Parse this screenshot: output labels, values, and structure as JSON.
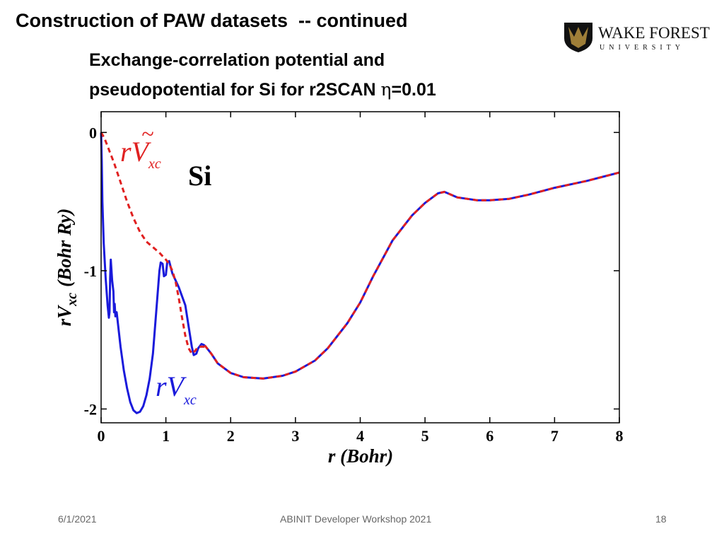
{
  "slide": {
    "title": "Construction of PAW datasets  -- continued",
    "subtitle_line1": "Exchange-correlation potential and",
    "subtitle_line2_prefix": "pseudopotential for Si for r2SCAN ",
    "subtitle_eta_symbol": "η",
    "subtitle_eta_value": "=0.01"
  },
  "logo": {
    "name": "WAKE FOREST",
    "sub": "UNIVERSITY",
    "colors": {
      "gold": "#9e7e38",
      "black": "#111111"
    }
  },
  "footer": {
    "date": "6/1/2021",
    "event": "ABINIT Developer Workshop 2021",
    "page": "18"
  },
  "chart_data": {
    "type": "line",
    "xlabel": "r (Bohr)",
    "ylabel_main": "rV",
    "ylabel_sub": "xc",
    "ylabel_unit": "(Bohr Ry)",
    "xlim": [
      0,
      8
    ],
    "ylim": [
      -2.1,
      0.15
    ],
    "x_ticks": [
      0,
      1,
      2,
      3,
      4,
      5,
      6,
      7,
      8
    ],
    "y_ticks": [
      0,
      -1,
      -2
    ],
    "y_tick_labels": [
      "0",
      "-1",
      "-2"
    ],
    "element_label": "Si",
    "series": [
      {
        "label_main": "rV",
        "label_sub": "xc",
        "color": "#1a1adb",
        "style": "solid",
        "points": [
          [
            0,
            0
          ],
          [
            0.01,
            -0.2
          ],
          [
            0.02,
            -0.5
          ],
          [
            0.04,
            -0.8
          ],
          [
            0.07,
            -1.05
          ],
          [
            0.1,
            -1.25
          ],
          [
            0.12,
            -1.34
          ],
          [
            0.13,
            -1.3
          ],
          [
            0.14,
            -1.05
          ],
          [
            0.15,
            -0.92
          ],
          [
            0.17,
            -1.07
          ],
          [
            0.19,
            -1.15
          ],
          [
            0.2,
            -1.3
          ],
          [
            0.21,
            -1.24
          ],
          [
            0.22,
            -1.33
          ],
          [
            0.24,
            -1.3
          ],
          [
            0.3,
            -1.55
          ],
          [
            0.35,
            -1.72
          ],
          [
            0.4,
            -1.85
          ],
          [
            0.45,
            -1.95
          ],
          [
            0.5,
            -2.01
          ],
          [
            0.55,
            -2.03
          ],
          [
            0.6,
            -2.02
          ],
          [
            0.65,
            -1.98
          ],
          [
            0.7,
            -1.9
          ],
          [
            0.75,
            -1.78
          ],
          [
            0.8,
            -1.6
          ],
          [
            0.85,
            -1.3
          ],
          [
            0.9,
            -1.0
          ],
          [
            0.92,
            -0.94
          ],
          [
            0.95,
            -0.95
          ],
          [
            0.97,
            -1.04
          ],
          [
            1.0,
            -1.03
          ],
          [
            1.02,
            -0.94
          ],
          [
            1.05,
            -0.93
          ],
          [
            1.1,
            -1.02
          ],
          [
            1.2,
            -1.12
          ],
          [
            1.3,
            -1.25
          ],
          [
            1.35,
            -1.4
          ],
          [
            1.4,
            -1.55
          ],
          [
            1.43,
            -1.61
          ],
          [
            1.47,
            -1.6
          ],
          [
            1.5,
            -1.56
          ],
          [
            1.55,
            -1.53
          ],
          [
            1.6,
            -1.54
          ]
        ]
      },
      {
        "label_main": "rV",
        "label_sub": "xc",
        "label_accent": "~",
        "color": "#e02020",
        "style": "dashed",
        "points": [
          [
            0,
            0
          ],
          [
            0.05,
            -0.04
          ],
          [
            0.1,
            -0.1
          ],
          [
            0.2,
            -0.22
          ],
          [
            0.3,
            -0.36
          ],
          [
            0.4,
            -0.5
          ],
          [
            0.5,
            -0.62
          ],
          [
            0.6,
            -0.72
          ],
          [
            0.7,
            -0.79
          ],
          [
            0.8,
            -0.83
          ],
          [
            0.9,
            -0.87
          ],
          [
            1.0,
            -0.92
          ],
          [
            1.05,
            -0.95
          ],
          [
            1.1,
            -1.0
          ],
          [
            1.15,
            -1.08
          ],
          [
            1.2,
            -1.2
          ],
          [
            1.25,
            -1.34
          ],
          [
            1.3,
            -1.47
          ],
          [
            1.35,
            -1.56
          ],
          [
            1.4,
            -1.6
          ],
          [
            1.45,
            -1.58
          ],
          [
            1.5,
            -1.55
          ],
          [
            1.6,
            -1.55
          ]
        ]
      },
      {
        "label_main": "",
        "color": "#1a1adb",
        "overlay_color": "#e02020",
        "style": "solid+dashed",
        "points": [
          [
            1.6,
            -1.54
          ],
          [
            1.7,
            -1.6
          ],
          [
            1.8,
            -1.67
          ],
          [
            2.0,
            -1.74
          ],
          [
            2.2,
            -1.77
          ],
          [
            2.5,
            -1.78
          ],
          [
            2.8,
            -1.76
          ],
          [
            3.0,
            -1.73
          ],
          [
            3.3,
            -1.65
          ],
          [
            3.5,
            -1.56
          ],
          [
            3.8,
            -1.38
          ],
          [
            4.0,
            -1.23
          ],
          [
            4.2,
            -1.04
          ],
          [
            4.5,
            -0.78
          ],
          [
            4.8,
            -0.6
          ],
          [
            5.0,
            -0.51
          ],
          [
            5.2,
            -0.44
          ],
          [
            5.3,
            -0.43
          ],
          [
            5.5,
            -0.47
          ],
          [
            5.8,
            -0.49
          ],
          [
            6.0,
            -0.49
          ],
          [
            6.3,
            -0.48
          ],
          [
            6.6,
            -0.45
          ],
          [
            7.0,
            -0.4
          ],
          [
            7.5,
            -0.35
          ],
          [
            8.0,
            -0.29
          ]
        ]
      }
    ]
  }
}
